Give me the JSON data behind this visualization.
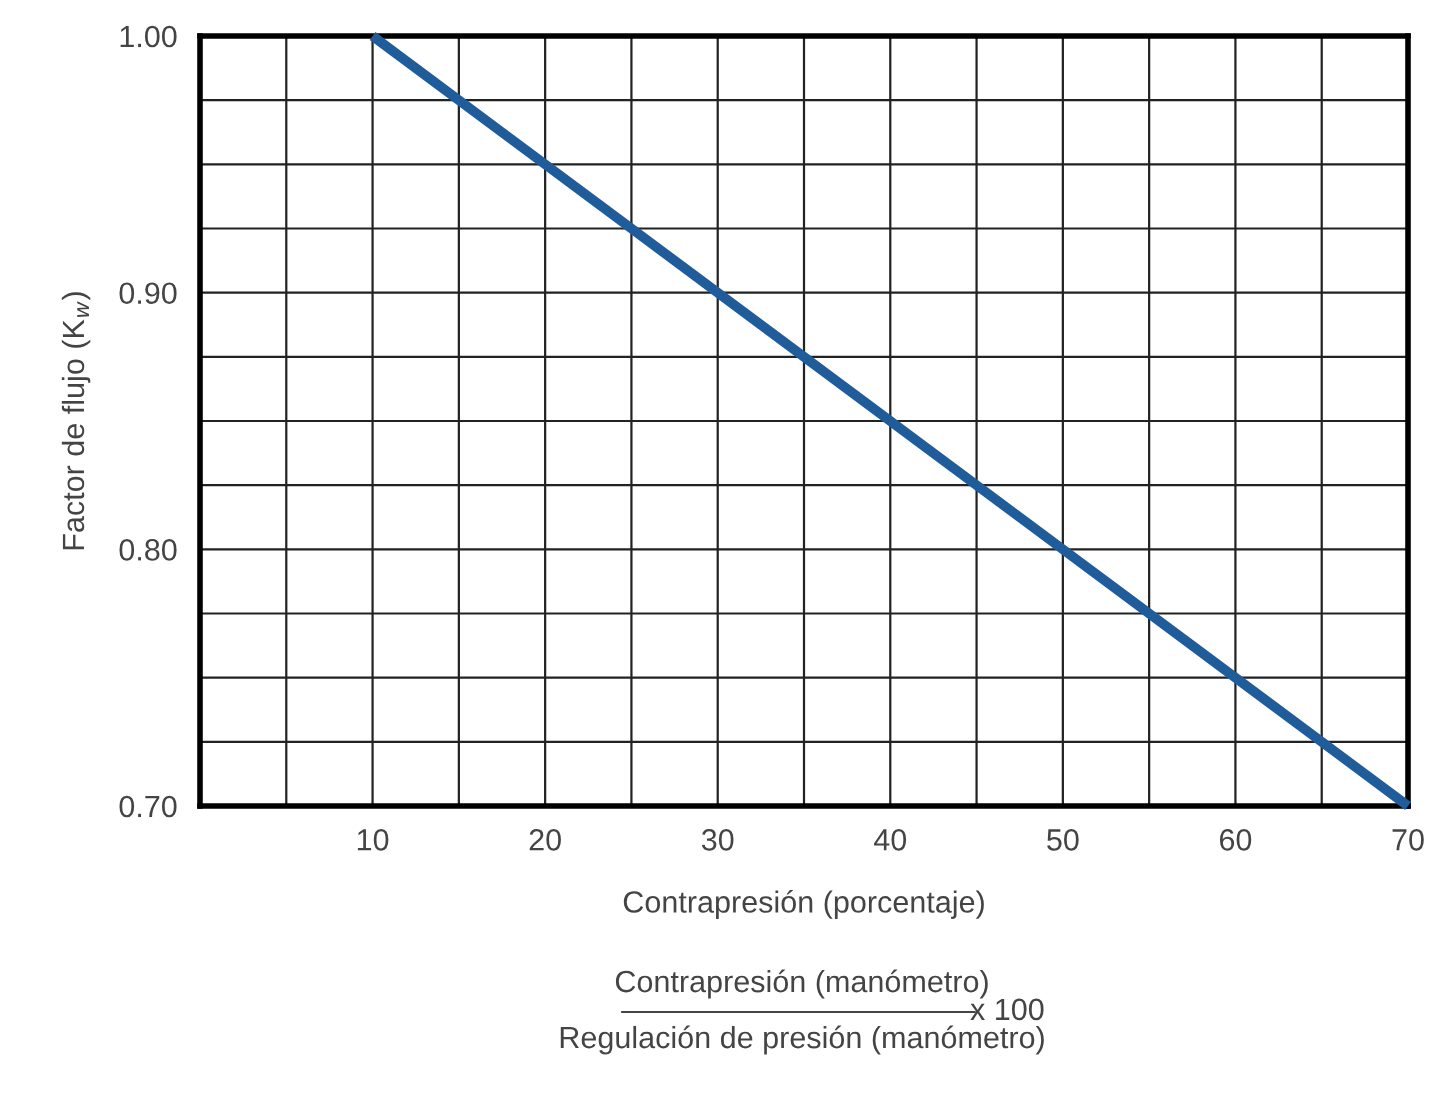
{
  "chart_data": {
    "type": "line",
    "xlabel": "Contrapresión (porcentaje)",
    "ylabel": "Factor de flujo (K$_{w}$)",
    "x": [
      10,
      70
    ],
    "series": [
      {
        "color": "#1f5c99",
        "values": [
          1.0,
          0.7
        ]
      }
    ],
    "xlim": [
      0,
      70
    ],
    "xticks": [
      {
        "value": 5,
        "label": null
      },
      10,
      {
        "value": 15,
        "label": null
      },
      20,
      {
        "value": 25,
        "label": null
      },
      30,
      {
        "value": 35,
        "label": null
      },
      40,
      {
        "value": 45,
        "label": null
      },
      50,
      {
        "value": 55,
        "label": null
      },
      60,
      {
        "value": 65,
        "label": null
      },
      70
    ],
    "ylim": [
      0.7,
      1.0
    ],
    "yticks": [
      {
        "value": 0.7,
        "label": "0.70"
      },
      {
        "value": 0.725,
        "label": null
      },
      {
        "value": 0.75,
        "label": null
      },
      {
        "value": 0.775,
        "label": null
      },
      {
        "value": 0.8,
        "label": "0.80"
      },
      {
        "value": 0.825,
        "label": null
      },
      {
        "value": 0.85,
        "label": null
      },
      {
        "value": 0.875,
        "label": null
      },
      {
        "value": 0.9,
        "label": "0.90"
      },
      {
        "value": 0.925,
        "label": null
      },
      {
        "value": 0.95,
        "label": null
      },
      {
        "value": 0.975,
        "label": null
      },
      {
        "value": 1.0,
        "label": "1.00"
      }
    ],
    "grid": true,
    "marker": "none",
    "line_style": "solid",
    "annotations": [
      "Contrapresión (manómetro)",
      "Regulación de presión (manómetro)",
      "x 100"
    ]
  }
}
